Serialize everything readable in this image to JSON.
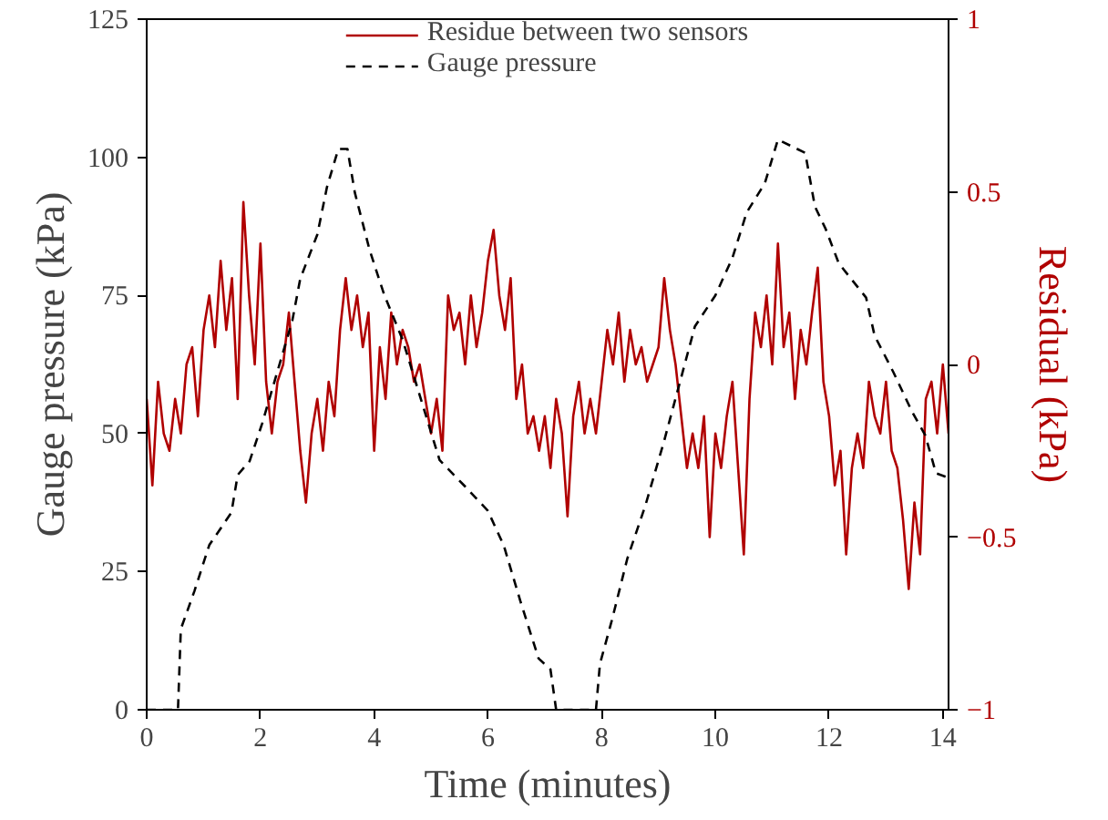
{
  "chart_data": {
    "type": "line",
    "xlabel": "Time (minutes)",
    "ylabel": "Gauge pressure (kPa)",
    "y2label": "Residual (kPa)",
    "xlim": [
      0,
      14.1
    ],
    "xticks": [
      0,
      2,
      4,
      6,
      8,
      10,
      12,
      14
    ],
    "ylim": [
      0,
      125
    ],
    "yticks": [
      0,
      25,
      50,
      75,
      100,
      125
    ],
    "y2lim": [
      -1,
      1
    ],
    "y2ticks": [
      -1,
      -0.5,
      0,
      0.5,
      1
    ],
    "grid": false,
    "legend": "top",
    "series": [
      {
        "name": "Residue between two sensors",
        "color": "#b00000",
        "axis": "y2",
        "line_style": "solid",
        "x": [
          0,
          0.1,
          0.2,
          0.3,
          0.4,
          0.5,
          0.6,
          0.7,
          0.8,
          0.9,
          1.0,
          1.1,
          1.2,
          1.3,
          1.4,
          1.5,
          1.6,
          1.7,
          1.8,
          1.9,
          2.0,
          2.1,
          2.2,
          2.3,
          2.4,
          2.5,
          2.6,
          2.7,
          2.8,
          2.9,
          3.0,
          3.1,
          3.2,
          3.3,
          3.4,
          3.5,
          3.6,
          3.7,
          3.8,
          3.9,
          4.0,
          4.1,
          4.2,
          4.3,
          4.4,
          4.5,
          4.6,
          4.7,
          4.8,
          4.9,
          5.0,
          5.1,
          5.2,
          5.3,
          5.4,
          5.5,
          5.6,
          5.7,
          5.8,
          5.9,
          6.0,
          6.1,
          6.2,
          6.3,
          6.4,
          6.5,
          6.6,
          6.7,
          6.8,
          6.9,
          7.0,
          7.1,
          7.2,
          7.3,
          7.4,
          7.5,
          7.6,
          7.7,
          7.8,
          7.9,
          8.0,
          8.1,
          8.2,
          8.3,
          8.4,
          8.5,
          8.6,
          8.7,
          8.8,
          8.9,
          9.0,
          9.1,
          9.2,
          9.3,
          9.4,
          9.5,
          9.6,
          9.7,
          9.8,
          9.9,
          10.0,
          10.1,
          10.2,
          10.3,
          10.4,
          10.5,
          10.6,
          10.7,
          10.8,
          10.9,
          11.0,
          11.1,
          11.2,
          11.3,
          11.4,
          11.5,
          11.6,
          11.7,
          11.8,
          11.9,
          12.0,
          12.1,
          12.2,
          12.3,
          12.4,
          12.5,
          12.6,
          12.7,
          12.8,
          12.9,
          13.0,
          13.1,
          13.2,
          13.3,
          13.4,
          13.5,
          13.6,
          13.7,
          13.8,
          13.9,
          14.0,
          14.1
        ],
        "values": [
          -0.1,
          -0.35,
          -0.05,
          -0.2,
          -0.25,
          -0.1,
          -0.2,
          0.0,
          0.05,
          -0.15,
          0.1,
          0.2,
          0.05,
          0.3,
          0.1,
          0.25,
          -0.1,
          0.47,
          0.2,
          0.0,
          0.35,
          -0.05,
          -0.2,
          -0.05,
          0.0,
          0.15,
          -0.05,
          -0.25,
          -0.4,
          -0.2,
          -0.1,
          -0.25,
          -0.05,
          -0.15,
          0.1,
          0.25,
          0.1,
          0.2,
          0.05,
          0.15,
          -0.25,
          0.05,
          -0.1,
          0.15,
          0.0,
          0.1,
          0.05,
          -0.05,
          0.0,
          -0.1,
          -0.2,
          -0.1,
          -0.25,
          0.2,
          0.1,
          0.15,
          0.0,
          0.2,
          0.05,
          0.15,
          0.3,
          0.39,
          0.2,
          0.1,
          0.25,
          -0.1,
          0.0,
          -0.2,
          -0.15,
          -0.25,
          -0.15,
          -0.3,
          -0.1,
          -0.2,
          -0.44,
          -0.15,
          -0.05,
          -0.2,
          -0.1,
          -0.2,
          -0.05,
          0.1,
          0.0,
          0.15,
          -0.05,
          0.1,
          0.0,
          0.05,
          -0.05,
          0.0,
          0.05,
          0.25,
          0.1,
          0.0,
          -0.15,
          -0.3,
          -0.2,
          -0.3,
          -0.15,
          -0.5,
          -0.2,
          -0.3,
          -0.15,
          -0.05,
          -0.3,
          -0.55,
          -0.1,
          0.15,
          0.05,
          0.2,
          0.0,
          0.35,
          0.05,
          0.15,
          -0.1,
          0.1,
          0.0,
          0.15,
          0.28,
          -0.05,
          -0.15,
          -0.35,
          -0.25,
          -0.55,
          -0.3,
          -0.2,
          -0.3,
          -0.05,
          -0.15,
          -0.2,
          -0.05,
          -0.25,
          -0.3,
          -0.45,
          -0.65,
          -0.4,
          -0.55,
          -0.1,
          -0.05,
          -0.2,
          0.0,
          -0.2
        ]
      },
      {
        "name": "Gauge pressure",
        "color": "#000000",
        "line_style": "dashed",
        "x": [
          0,
          0.55,
          0.6,
          0.84,
          1.1,
          1.49,
          1.6,
          1.81,
          2.03,
          2.56,
          2.7,
          3.0,
          3.17,
          3.37,
          3.53,
          3.66,
          3.92,
          4.18,
          4.5,
          5.15,
          5.6,
          6.0,
          6.28,
          6.57,
          6.89,
          7.1,
          7.2,
          7.9,
          7.97,
          8.18,
          8.45,
          8.77,
          9.1,
          9.64,
          10.0,
          10.3,
          10.55,
          10.87,
          11.1,
          11.58,
          11.75,
          11.94,
          12.17,
          12.65,
          12.8,
          13.13,
          13.46,
          13.69,
          13.88,
          14.1
        ],
        "values": [
          0,
          0,
          14.6,
          21.5,
          29.8,
          35.7,
          42.5,
          45,
          51.8,
          70.4,
          78,
          86,
          94.6,
          101.5,
          101.5,
          93.6,
          83.2,
          75,
          67,
          45.2,
          40.4,
          36,
          29.7,
          19.7,
          9.3,
          7.3,
          0,
          0,
          8.3,
          16.2,
          27.3,
          37,
          48.7,
          69.4,
          75,
          81.8,
          90,
          95.3,
          103.2,
          100.8,
          91.1,
          87,
          80.8,
          74.6,
          67.7,
          61.1,
          53.9,
          49.7,
          42.8,
          42
        ]
      }
    ]
  }
}
